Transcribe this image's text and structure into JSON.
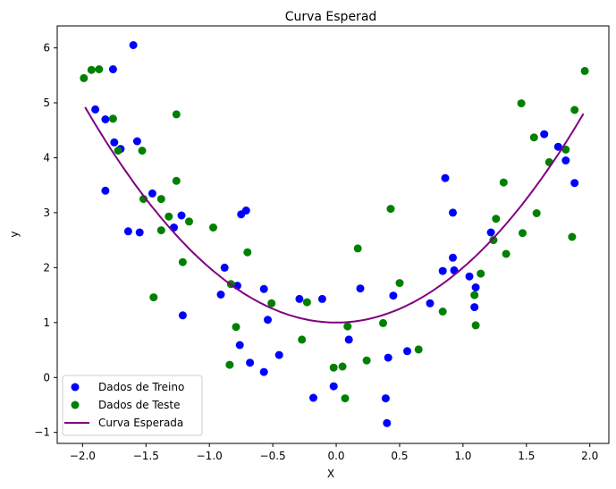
{
  "chart_data": {
    "type": "scatter",
    "title": "Curva Esperad",
    "xlabel": "X",
    "ylabel": "y",
    "xlim": [
      -2.2,
      2.15
    ],
    "ylim": [
      -1.2,
      6.4
    ],
    "xticks": [
      -2.0,
      -1.5,
      -1.0,
      -0.5,
      0.0,
      0.5,
      1.0,
      1.5,
      2.0
    ],
    "xtick_labels": [
      "−2.0",
      "−1.5",
      "−1.0",
      "−0.5",
      "0.0",
      "0.5",
      "1.0",
      "1.5",
      "2.0"
    ],
    "yticks": [
      -1,
      0,
      1,
      2,
      3,
      4,
      5,
      6
    ],
    "ytick_labels": [
      "−1",
      "0",
      "1",
      "2",
      "3",
      "4",
      "5",
      "6"
    ],
    "grid": false,
    "legend_position": "lower-left",
    "series": [
      {
        "name": "Dados de Treino",
        "kind": "scatter",
        "color": "#0000ff",
        "points": [
          [
            -1.9,
            4.88
          ],
          [
            -1.82,
            4.7
          ],
          [
            -1.82,
            3.4
          ],
          [
            -1.76,
            5.61
          ],
          [
            -1.75,
            4.28
          ],
          [
            -1.7,
            4.16
          ],
          [
            -1.64,
            2.66
          ],
          [
            -1.6,
            6.05
          ],
          [
            -1.57,
            4.3
          ],
          [
            -1.55,
            2.64
          ],
          [
            -1.45,
            3.35
          ],
          [
            -1.28,
            2.73
          ],
          [
            -1.22,
            2.95
          ],
          [
            -1.21,
            1.13
          ],
          [
            -0.91,
            1.51
          ],
          [
            -0.88,
            2.0
          ],
          [
            -0.78,
            1.67
          ],
          [
            -0.76,
            0.59
          ],
          [
            -0.75,
            2.97
          ],
          [
            -0.71,
            3.04
          ],
          [
            -0.68,
            0.27
          ],
          [
            -0.57,
            1.61
          ],
          [
            -0.57,
            0.1
          ],
          [
            -0.54,
            1.05
          ],
          [
            -0.45,
            0.41
          ],
          [
            -0.29,
            1.43
          ],
          [
            -0.18,
            -0.37
          ],
          [
            -0.11,
            1.43
          ],
          [
            -0.02,
            -0.16
          ],
          [
            0.1,
            0.69
          ],
          [
            0.19,
            1.62
          ],
          [
            0.39,
            -0.38
          ],
          [
            0.4,
            -0.83
          ],
          [
            0.41,
            0.36
          ],
          [
            0.45,
            1.49
          ],
          [
            0.56,
            0.48
          ],
          [
            0.74,
            1.35
          ],
          [
            0.84,
            1.94
          ],
          [
            0.86,
            3.63
          ],
          [
            0.92,
            2.18
          ],
          [
            0.92,
            3.0
          ],
          [
            0.93,
            1.95
          ],
          [
            1.05,
            1.84
          ],
          [
            1.09,
            1.28
          ],
          [
            1.1,
            1.64
          ],
          [
            1.22,
            2.64
          ],
          [
            1.64,
            4.43
          ],
          [
            1.75,
            4.2
          ],
          [
            1.81,
            3.95
          ],
          [
            1.88,
            3.54
          ]
        ]
      },
      {
        "name": "Dados de Teste",
        "kind": "scatter",
        "color": "#008000",
        "points": [
          [
            -1.99,
            5.45
          ],
          [
            -1.93,
            5.6
          ],
          [
            -1.87,
            5.61
          ],
          [
            -1.76,
            4.71
          ],
          [
            -1.72,
            4.13
          ],
          [
            -1.53,
            4.13
          ],
          [
            -1.52,
            3.25
          ],
          [
            -1.44,
            1.46
          ],
          [
            -1.38,
            3.25
          ],
          [
            -1.38,
            2.68
          ],
          [
            -1.32,
            2.93
          ],
          [
            -1.26,
            4.79
          ],
          [
            -1.26,
            3.58
          ],
          [
            -1.21,
            2.1
          ],
          [
            -1.16,
            2.84
          ],
          [
            -0.97,
            2.73
          ],
          [
            -0.84,
            0.23
          ],
          [
            -0.83,
            1.7
          ],
          [
            -0.79,
            0.92
          ],
          [
            -0.7,
            2.28
          ],
          [
            -0.51,
            1.35
          ],
          [
            -0.27,
            0.69
          ],
          [
            -0.23,
            1.37
          ],
          [
            -0.02,
            0.18
          ],
          [
            0.05,
            0.2
          ],
          [
            0.07,
            -0.38
          ],
          [
            0.09,
            0.93
          ],
          [
            0.17,
            2.35
          ],
          [
            0.24,
            0.31
          ],
          [
            0.37,
            0.99
          ],
          [
            0.43,
            3.07
          ],
          [
            0.5,
            1.72
          ],
          [
            0.65,
            0.51
          ],
          [
            0.84,
            1.2
          ],
          [
            1.09,
            1.5
          ],
          [
            1.1,
            0.95
          ],
          [
            1.14,
            1.89
          ],
          [
            1.24,
            2.5
          ],
          [
            1.26,
            2.89
          ],
          [
            1.32,
            3.55
          ],
          [
            1.34,
            2.25
          ],
          [
            1.46,
            4.99
          ],
          [
            1.47,
            2.63
          ],
          [
            1.56,
            4.37
          ],
          [
            1.58,
            2.99
          ],
          [
            1.68,
            3.92
          ],
          [
            1.81,
            4.15
          ],
          [
            1.86,
            2.56
          ],
          [
            1.88,
            4.87
          ],
          [
            1.96,
            5.58
          ]
        ]
      },
      {
        "name": "Curva Esperada",
        "kind": "line",
        "color": "#800080",
        "equation": "y = x^2 + 1",
        "x_range": [
          -1.98,
          1.95
        ]
      }
    ]
  }
}
